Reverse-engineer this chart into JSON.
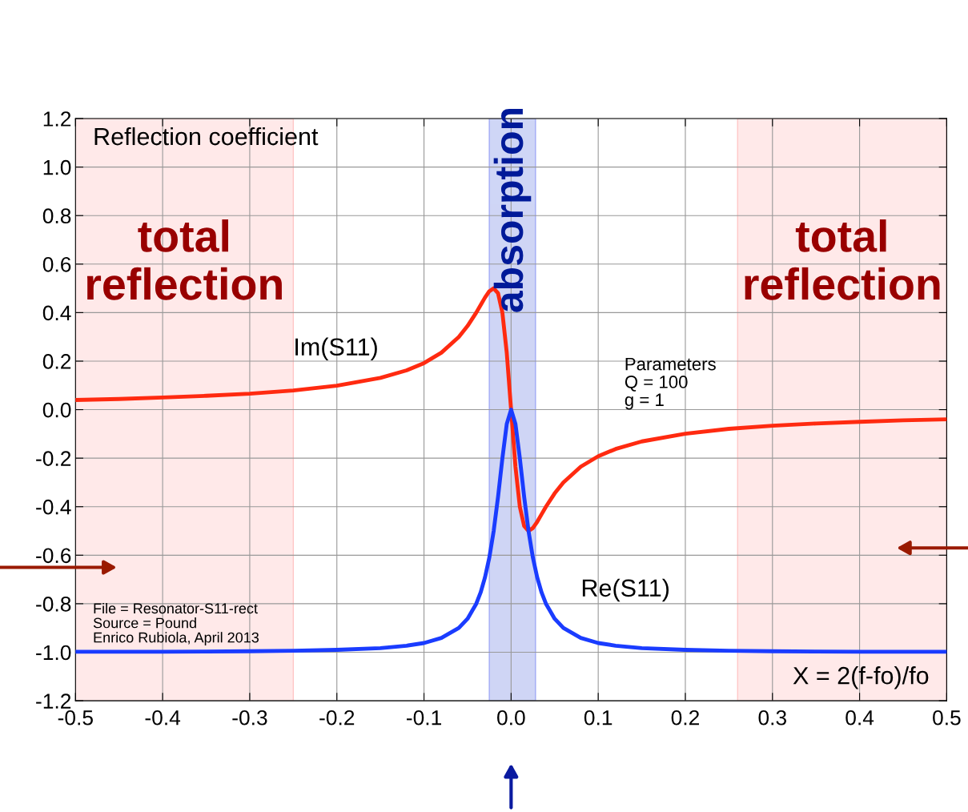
{
  "chart_data": {
    "type": "line",
    "title": "Reflection coefficient",
    "x": [
      -0.5,
      -0.45,
      -0.4,
      -0.35,
      -0.3,
      -0.25,
      -0.2,
      -0.15,
      -0.12,
      -0.1,
      -0.08,
      -0.06,
      -0.05,
      -0.04,
      -0.035,
      -0.03,
      -0.025,
      -0.02,
      -0.015,
      -0.01,
      -0.005,
      0,
      0.005,
      0.01,
      0.015,
      0.02,
      0.025,
      0.03,
      0.035,
      0.04,
      0.05,
      0.06,
      0.08,
      0.1,
      0.12,
      0.15,
      0.2,
      0.25,
      0.3,
      0.35,
      0.4,
      0.45,
      0.5
    ],
    "series": [
      {
        "color": "#ff2a10",
        "values": [
          0.04,
          0.044,
          0.05,
          0.057,
          0.066,
          0.079,
          0.099,
          0.131,
          0.162,
          0.192,
          0.235,
          0.3,
          0.345,
          0.4,
          0.431,
          0.462,
          0.488,
          0.5,
          0.48,
          0.4,
          0.235,
          0,
          -0.235,
          -0.4,
          -0.48,
          -0.5,
          -0.488,
          -0.462,
          -0.431,
          -0.4,
          -0.345,
          -0.3,
          -0.235,
          -0.192,
          -0.162,
          -0.131,
          -0.099,
          -0.079,
          -0.066,
          -0.057,
          -0.05,
          -0.044,
          -0.04
        ]
      },
      {
        "color": "#1a3cff",
        "values": [
          -0.998,
          -0.998,
          -0.998,
          -0.997,
          -0.996,
          -0.994,
          -0.99,
          -0.983,
          -0.973,
          -0.962,
          -0.941,
          -0.9,
          -0.862,
          -0.8,
          -0.754,
          -0.692,
          -0.61,
          -0.5,
          -0.36,
          -0.2,
          -0.059,
          0,
          -0.059,
          -0.2,
          -0.36,
          -0.5,
          -0.61,
          -0.692,
          -0.754,
          -0.8,
          -0.862,
          -0.9,
          -0.941,
          -0.962,
          -0.973,
          -0.983,
          -0.99,
          -0.994,
          -0.996,
          -0.997,
          -0.998,
          -0.998,
          -0.998
        ]
      }
    ],
    "xlim": [
      -0.5,
      0.5
    ],
    "xticks": [
      -0.5,
      -0.4,
      -0.3,
      -0.2,
      -0.1,
      {
        "value": 0,
        "label": "0.0"
      },
      0.1,
      0.2,
      0.3,
      0.4,
      0.5
    ],
    "ylim": [
      -1.2,
      1.2
    ],
    "yticks": [
      -1.2,
      {
        "value": -1,
        "label": "-1.0"
      },
      -0.8,
      -0.6,
      -0.4,
      -0.2,
      {
        "value": 0,
        "label": "0.0"
      },
      0.2,
      0.4,
      0.6,
      0.8,
      {
        "value": 1,
        "label": "1.0"
      },
      1.2
    ],
    "grid": true,
    "bands": [
      {
        "axis": "x",
        "from": -0.5,
        "to": -0.25,
        "label": "total\nreflection",
        "color": "#ffd8d8"
      },
      {
        "axis": "x",
        "from": -0.025,
        "to": 0.028,
        "label": "absorption",
        "color": "#a8b4ee"
      },
      {
        "axis": "x",
        "from": 0.26,
        "to": 0.5,
        "label": "total\nreflection",
        "color": "#ffd8d8"
      }
    ],
    "annotations": [
      {
        "text": "Im(S11)",
        "x": -0.25,
        "y": 0.25
      },
      "Re(S11)",
      "Parameters\nQ = 100\ng = 1",
      "File = Resonator-S11-rect\nSource = Pound\nEnrico Rubiola, April 2013",
      "X = 2(f-fo)/fo"
    ]
  }
}
